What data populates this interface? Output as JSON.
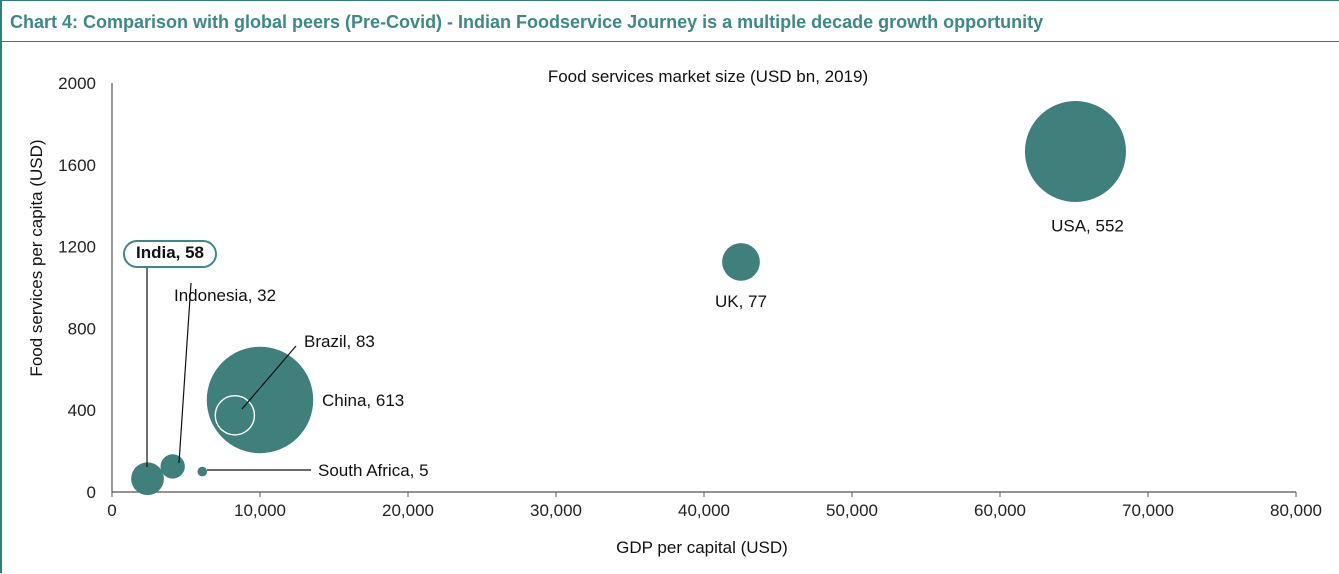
{
  "header": {
    "title": "Chart 4: Comparison with global peers (Pre-Covid) - Indian Foodservice Journey is a multiple decade growth opportunity"
  },
  "colors": {
    "bubble": "#3f7f7c",
    "accent": "#3b8a86",
    "axis": "#555555"
  },
  "chart_data": {
    "type": "scatter",
    "subtitle": "Food services market size (USD bn, 2019)",
    "xlabel": "GDP per capital (USD)",
    "ylabel": "Food services per capita (USD)",
    "xlim": [
      0,
      80000
    ],
    "ylim": [
      0,
      2000
    ],
    "x_ticks": [
      "0",
      "10,000",
      "20,000",
      "30,000",
      "40,000",
      "50,000",
      "60,000",
      "70,000",
      "80,000"
    ],
    "y_ticks": [
      "0",
      "400",
      "800",
      "1200",
      "1600",
      "2000"
    ],
    "grid": false,
    "bubble_size_metric": "market size (USD bn)",
    "points": [
      {
        "label": "India, 58",
        "country": "India",
        "x": 2400,
        "y": 65,
        "size": 58,
        "highlight": true
      },
      {
        "label": "Indonesia, 32",
        "country": "Indonesia",
        "x": 4100,
        "y": 125,
        "size": 32
      },
      {
        "label": "Brazil, 83",
        "country": "Brazil",
        "x": 8300,
        "y": 375,
        "size": 83,
        "outline": true
      },
      {
        "label": "China, 613",
        "country": "China",
        "x": 10000,
        "y": 450,
        "size": 613
      },
      {
        "label": "South Africa, 5",
        "country": "South Africa",
        "x": 6100,
        "y": 100,
        "size": 5
      },
      {
        "label": "UK, 77",
        "country": "UK",
        "x": 42500,
        "y": 1125,
        "size": 77
      },
      {
        "label": "USA, 552",
        "country": "USA",
        "x": 65100,
        "y": 1665,
        "size": 552
      }
    ]
  }
}
